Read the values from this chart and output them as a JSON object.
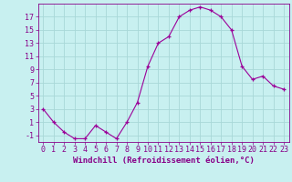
{
  "x": [
    0,
    1,
    2,
    3,
    4,
    5,
    6,
    7,
    8,
    9,
    10,
    11,
    12,
    13,
    14,
    15,
    16,
    17,
    18,
    19,
    20,
    21,
    22,
    23
  ],
  "y": [
    3,
    1,
    -0.5,
    -1.5,
    -1.5,
    0.5,
    -0.5,
    -1.5,
    1,
    4,
    9.5,
    13,
    14,
    17,
    18,
    18.5,
    18,
    17,
    15,
    9.5,
    7.5,
    8,
    6.5,
    6
  ],
  "line_color": "#9b0099",
  "marker": "+",
  "marker_size": 3,
  "background_color": "#c8f0f0",
  "grid_color": "#a8d8d8",
  "xlabel": "Windchill (Refroidissement éolien,°C)",
  "xlim": [
    -0.5,
    23.5
  ],
  "ylim": [
    -2,
    19
  ],
  "yticks": [
    -1,
    1,
    3,
    5,
    7,
    9,
    11,
    13,
    15,
    17
  ],
  "xticks": [
    0,
    1,
    2,
    3,
    4,
    5,
    6,
    7,
    8,
    9,
    10,
    11,
    12,
    13,
    14,
    15,
    16,
    17,
    18,
    19,
    20,
    21,
    22,
    23
  ],
  "tick_color": "#880088",
  "axis_color": "#880088",
  "label_fontsize": 6.5,
  "tick_fontsize": 6
}
